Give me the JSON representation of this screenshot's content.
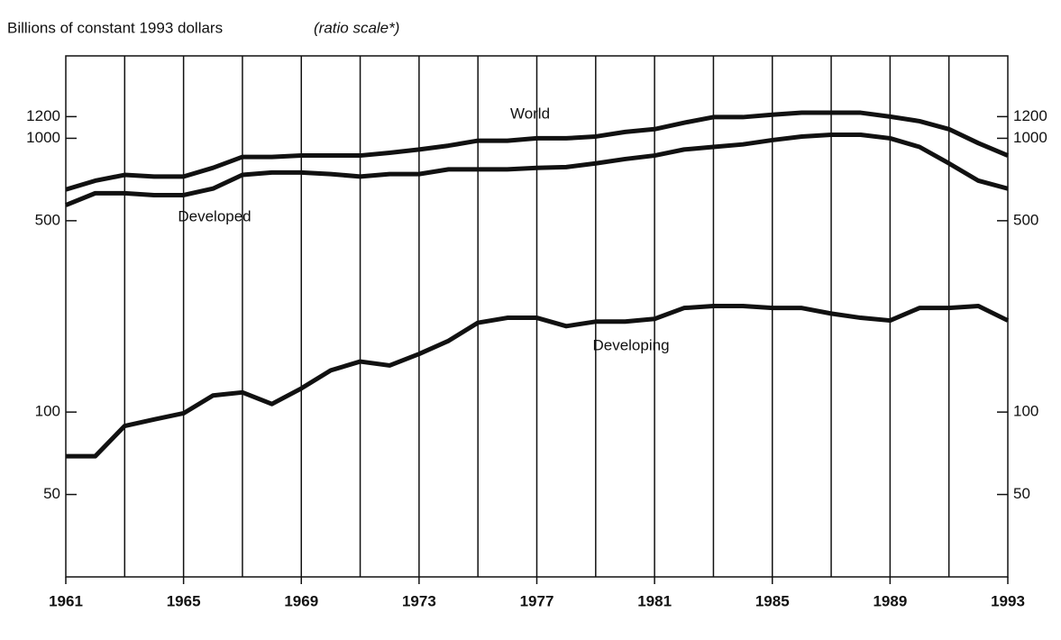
{
  "chart_data": {
    "type": "line",
    "title": "Billions of constant 1993 dollars",
    "subtitle": "(ratio scale*)",
    "x": [
      1961,
      1962,
      1963,
      1964,
      1965,
      1966,
      1967,
      1968,
      1969,
      1970,
      1971,
      1972,
      1973,
      1974,
      1975,
      1976,
      1977,
      1978,
      1979,
      1980,
      1981,
      1982,
      1983,
      1984,
      1985,
      1986,
      1987,
      1988,
      1989,
      1990,
      1991,
      1992,
      1993
    ],
    "xlim": [
      1961,
      1993
    ],
    "xticks": [
      1961,
      1965,
      1969,
      1973,
      1977,
      1981,
      1985,
      1989,
      1993
    ],
    "ylim": [
      25,
      2000
    ],
    "yticks": [
      50,
      100,
      500,
      1000,
      1200
    ],
    "log_scale": true,
    "grid": true,
    "series": [
      {
        "name": "World",
        "color": "#111111",
        "values": [
          650,
          700,
          735,
          725,
          725,
          780,
          855,
          855,
          865,
          865,
          865,
          885,
          910,
          940,
          980,
          980,
          1000,
          1000,
          1015,
          1055,
          1080,
          1140,
          1195,
          1195,
          1220,
          1240,
          1240,
          1240,
          1200,
          1155,
          1080,
          960,
          865
        ]
      },
      {
        "name": "Developed",
        "color": "#111111",
        "values": [
          570,
          630,
          630,
          620,
          620,
          655,
          735,
          750,
          750,
          740,
          725,
          740,
          740,
          770,
          770,
          770,
          780,
          785,
          810,
          840,
          865,
          910,
          930,
          950,
          985,
          1015,
          1030,
          1030,
          1000,
          930,
          810,
          700,
          655
        ]
      },
      {
        "name": "Developing",
        "color": "#111111",
        "values": [
          69,
          69,
          89,
          94,
          99,
          115,
          118,
          107,
          122,
          142,
          153,
          148,
          163,
          182,
          212,
          221,
          221,
          206,
          214,
          214,
          219,
          240,
          244,
          244,
          240,
          240,
          229,
          221,
          216,
          240,
          240,
          244,
          216
        ]
      }
    ]
  }
}
